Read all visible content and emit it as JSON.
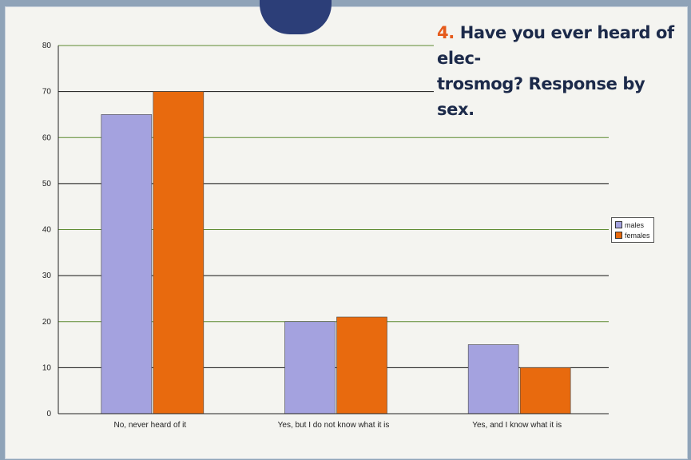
{
  "title": {
    "number": "4.",
    "line1": "Have you ever heard of elec-",
    "line2": "trosmog? Response by sex."
  },
  "colors": {
    "males": "#a4a2df",
    "females": "#e86a0e",
    "grid": "#111111",
    "grid_alt": "#5b8a2f"
  },
  "chart_data": {
    "type": "bar",
    "categories": [
      "No, never heard of it",
      "Yes, but I do not know what it is",
      "Yes, and I know what it is"
    ],
    "series": [
      {
        "name": "males",
        "values": [
          65,
          20,
          15
        ]
      },
      {
        "name": "females",
        "values": [
          70,
          21,
          10
        ]
      }
    ],
    "yticks": [
      0,
      10,
      20,
      30,
      40,
      50,
      60,
      70,
      80
    ],
    "ylim": [
      0,
      80
    ],
    "grid": true,
    "legend_position": "right"
  }
}
